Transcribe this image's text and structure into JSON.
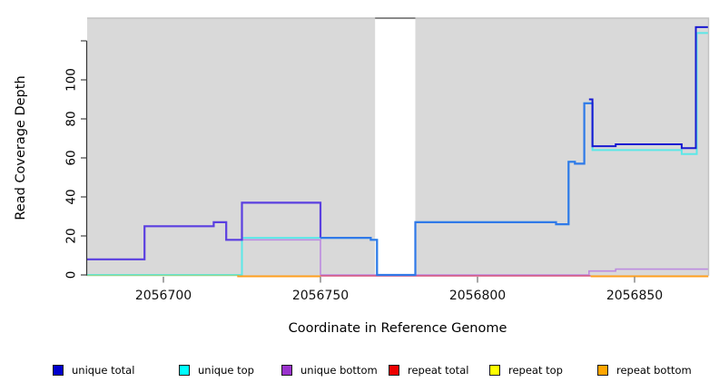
{
  "chart_data": {
    "type": "line",
    "subtype": "step-coverage",
    "title": "",
    "xlabel": "Coordinate in Reference Genome",
    "ylabel": "Read Coverage Depth",
    "x_ticks": [
      2056700,
      2056750,
      2056800,
      2056850
    ],
    "x_range": [
      2056675.7,
      2056873.5
    ],
    "y_ticks": [
      0,
      20,
      40,
      60,
      80,
      100,
      120
    ],
    "y_tick_labels": [
      "0",
      "20",
      "40",
      "60",
      "80",
      "100",
      ""
    ],
    "ylim": [
      0,
      132
    ],
    "grid": false,
    "plot_background": "#d9d9d9",
    "masked_region": {
      "from": 2056767.4,
      "to": 2056780.2,
      "fill": "#ffffff",
      "top_border": "#8a8a8a"
    },
    "legend_position": "bottom",
    "series": [
      {
        "name": "unique total",
        "color": "#0000CD",
        "steps": [
          [
            2056675.7,
            8
          ],
          [
            2056694,
            25
          ],
          [
            2056716,
            27
          ],
          [
            2056720,
            18
          ],
          [
            2056725,
            37
          ],
          [
            2056750,
            19
          ],
          [
            2056766,
            18
          ],
          [
            2056768,
            0
          ],
          [
            2056780,
            27
          ],
          [
            2056825,
            26
          ],
          [
            2056829,
            58
          ],
          [
            2056831,
            57
          ],
          [
            2056834,
            88
          ],
          [
            2056835.5,
            90
          ],
          [
            2056836.6,
            66
          ],
          [
            2056844,
            67
          ],
          [
            2056865,
            65
          ],
          [
            2056869.5,
            127
          ]
        ]
      },
      {
        "name": "unique top",
        "color": "#00FFFF",
        "steps": [
          [
            2056675.7,
            0
          ],
          [
            2056725,
            19
          ],
          [
            2056766,
            18
          ],
          [
            2056768,
            0
          ],
          [
            2056780,
            27
          ],
          [
            2056825,
            26
          ],
          [
            2056829,
            58
          ],
          [
            2056831,
            57
          ],
          [
            2056834,
            88
          ],
          [
            2056836.6,
            64
          ],
          [
            2056865,
            62
          ],
          [
            2056869.5,
            124
          ]
        ]
      },
      {
        "name": "unique bottom",
        "color": "#9A32CD",
        "steps": [
          [
            2056675.7,
            8
          ],
          [
            2056694,
            25
          ],
          [
            2056716,
            27
          ],
          [
            2056720,
            18
          ],
          [
            2056725,
            18
          ],
          [
            2056750,
            0
          ],
          [
            2056835.5,
            2
          ],
          [
            2056844,
            3
          ]
        ]
      },
      {
        "name": "repeat total",
        "color": "#EE0000",
        "steps": [
          [
            2056675.7,
            0
          ]
        ]
      },
      {
        "name": "repeat top",
        "color": "#FFFF00",
        "steps": [
          [
            2056675.7,
            0
          ]
        ]
      },
      {
        "name": "repeat bottom",
        "color": "#FFA500",
        "steps": [
          [
            2056675.7,
            0
          ]
        ]
      }
    ],
    "paint_segments": [
      {
        "name": "unique-top-line",
        "color": "#5BE8E8",
        "width": 2,
        "end": 2056873.5,
        "steps": [
          [
            2056675.7,
            0
          ],
          [
            2056725,
            19
          ],
          [
            2056766,
            18
          ],
          [
            2056768,
            0
          ],
          [
            2056780.2,
            27
          ],
          [
            2056825,
            26
          ],
          [
            2056829,
            58
          ],
          [
            2056831,
            57
          ],
          [
            2056834,
            88
          ],
          [
            2056836.6,
            64
          ],
          [
            2056865,
            62
          ],
          [
            2056869.8,
            124
          ]
        ]
      },
      {
        "name": "unique-bottom-line",
        "color": "#BD8BE0",
        "width": 1.6,
        "end": 2056873.5,
        "steps": [
          [
            2056675.7,
            8
          ],
          [
            2056694,
            25
          ],
          [
            2056716,
            27
          ],
          [
            2056720,
            18
          ],
          [
            2056750,
            0
          ],
          [
            2056835.5,
            2
          ],
          [
            2056844,
            3
          ]
        ]
      },
      {
        "name": "zero-line-green",
        "color": "#90D690",
        "width": 1.6,
        "end": 2056724,
        "dy": 0.5,
        "steps": [
          [
            2056675.7,
            0
          ]
        ]
      },
      {
        "name": "zero-line-crimson",
        "color": "#D6537A",
        "width": 1.6,
        "end": 2056836,
        "dy": 1,
        "steps": [
          [
            2056750,
            0
          ]
        ]
      },
      {
        "name": "zero-line-orange-left",
        "color": "#FF9E1E",
        "width": 2,
        "end": 2056750,
        "dy": 1.5,
        "steps": [
          [
            2056723.5,
            0
          ]
        ]
      },
      {
        "name": "zero-line-orange-right",
        "color": "#FF9E1E",
        "width": 2,
        "end": 2056873.5,
        "dy": 1.5,
        "steps": [
          [
            2056836,
            0
          ]
        ]
      },
      {
        "name": "unique-blend-line",
        "color": "#5A3FE0",
        "width": 2.2,
        "end": 2056750,
        "steps": [
          [
            2056675.7,
            8
          ],
          [
            2056694,
            25
          ],
          [
            2056716,
            27
          ],
          [
            2056720,
            18
          ],
          [
            2056725,
            37
          ],
          [
            2056750,
            19
          ]
        ]
      },
      {
        "name": "unique-total-bright",
        "color": "#3079E8",
        "width": 2.2,
        "end": 2056837,
        "steps": [
          [
            2056750,
            19
          ],
          [
            2056766,
            18
          ],
          [
            2056768,
            0
          ],
          [
            2056780.2,
            27
          ],
          [
            2056825,
            26
          ],
          [
            2056829,
            58
          ],
          [
            2056831,
            57
          ],
          [
            2056834,
            88
          ],
          [
            2056836.6,
            66
          ]
        ]
      },
      {
        "name": "unique-total-navy",
        "color": "#1A1AD1",
        "width": 2,
        "end": 2056873.5,
        "steps": [
          [
            2056835.5,
            90
          ],
          [
            2056836.6,
            66
          ],
          [
            2056844,
            67
          ],
          [
            2056865,
            65
          ],
          [
            2056869.5,
            127
          ]
        ]
      }
    ]
  },
  "axes": {
    "y_title": "Read Coverage Depth",
    "x_title": "Coordinate in Reference Genome"
  },
  "legend": {
    "items": [
      {
        "label": "unique total",
        "color": "#0000CD"
      },
      {
        "label": "unique top",
        "color": "#00FFFF"
      },
      {
        "label": "unique bottom",
        "color": "#9A32CD"
      },
      {
        "label": "repeat total",
        "color": "#EE0000"
      },
      {
        "label": "repeat top",
        "color": "#FFFF00"
      },
      {
        "label": "repeat bottom",
        "color": "#FFA500"
      }
    ]
  }
}
